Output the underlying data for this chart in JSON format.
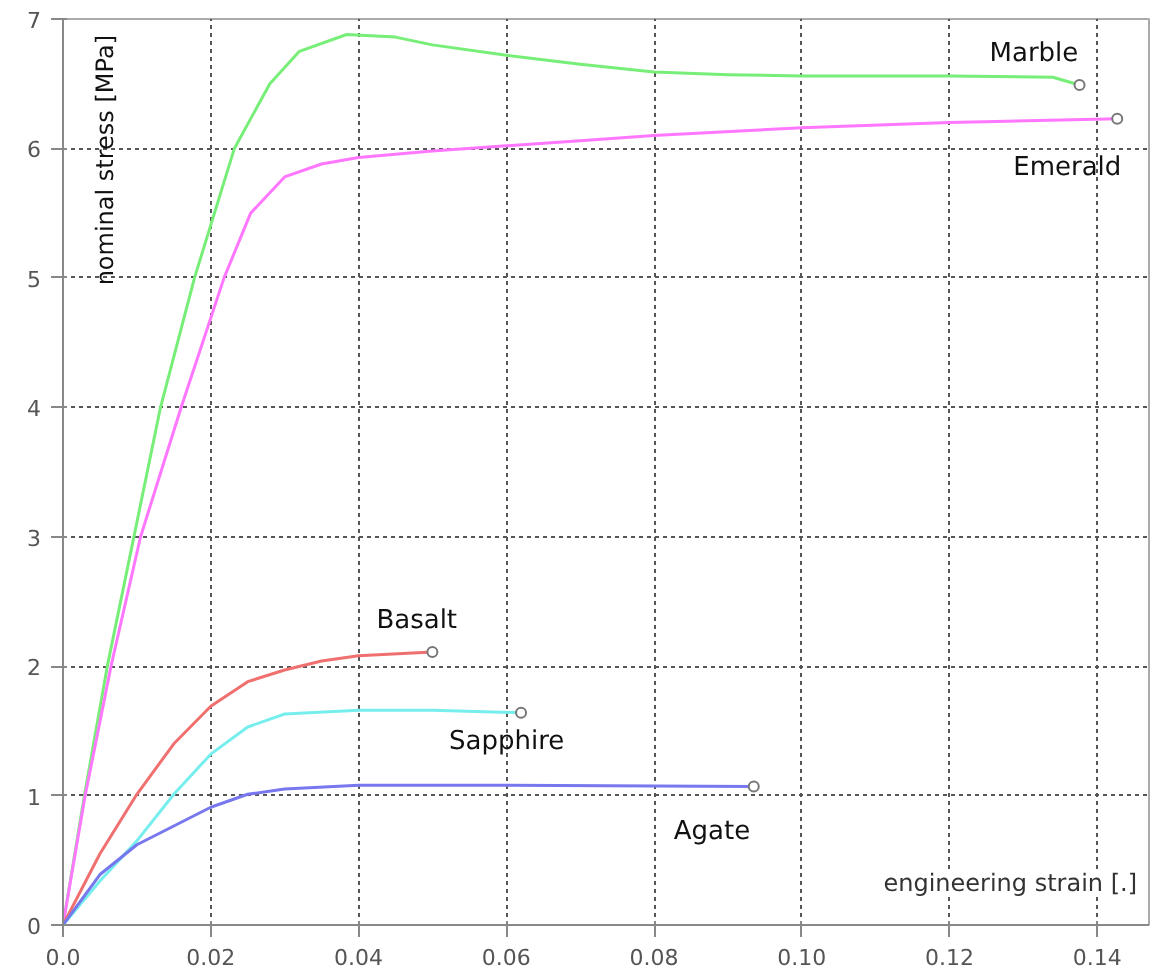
{
  "chart_data": {
    "type": "line",
    "xlabel": "engineering strain [.]",
    "ylabel": "nominal stress [MPa]",
    "xlim": [
      0,
      0.147
    ],
    "ylim": [
      0,
      7
    ],
    "xticks": [
      {
        "value": 0,
        "label": "0.0"
      },
      0.02,
      0.04,
      0.06,
      0.08,
      {
        "value": 0.1,
        "label": "0.10"
      },
      0.12,
      0.14
    ],
    "yticks": [
      0,
      1,
      2,
      3,
      4,
      5,
      6,
      7
    ],
    "grid": true,
    "line_style": "solid",
    "series": [
      {
        "name": "Marble",
        "color": "#77ee77",
        "x": [
          0,
          0.0029,
          0.006,
          0.0096,
          0.0132,
          0.0178,
          0.0232,
          0.028,
          0.032,
          0.0384,
          0.045,
          0.05,
          0.06,
          0.07,
          0.08,
          0.09,
          0.1,
          0.12,
          0.134,
          0.1376
        ],
        "values": [
          0,
          1,
          2,
          3,
          4,
          5,
          6,
          6.5,
          6.75,
          6.88,
          6.86,
          6.8,
          6.72,
          6.65,
          6.59,
          6.57,
          6.56,
          6.56,
          6.55,
          6.49
        ]
      },
      {
        "name": "Emerald",
        "color": "#ff77ff",
        "x": [
          0,
          0.003,
          0.0065,
          0.0105,
          0.016,
          0.0218,
          0.0254,
          0.03,
          0.035,
          0.04,
          0.05,
          0.06,
          0.07,
          0.08,
          0.1,
          0.12,
          0.1427
        ],
        "values": [
          0,
          1,
          2,
          3,
          4,
          5,
          5.5,
          5.78,
          5.88,
          5.93,
          5.98,
          6.02,
          6.06,
          6.1,
          6.16,
          6.2,
          6.23
        ]
      },
      {
        "name": "Basalt",
        "color": "#f07070",
        "x": [
          0,
          0.005,
          0.01,
          0.015,
          0.02,
          0.025,
          0.03,
          0.035,
          0.04,
          0.05
        ],
        "values": [
          0,
          0.55,
          1.01,
          1.4,
          1.69,
          1.88,
          1.97,
          2.04,
          2.08,
          2.11
        ]
      },
      {
        "name": "Sapphire",
        "color": "#77eeee",
        "x": [
          0,
          0.005,
          0.01,
          0.015,
          0.02,
          0.025,
          0.03,
          0.04,
          0.05,
          0.062
        ],
        "values": [
          0,
          0.34,
          0.65,
          1.01,
          1.32,
          1.53,
          1.63,
          1.66,
          1.66,
          1.64
        ]
      },
      {
        "name": "Agate",
        "color": "#7777ee",
        "x": [
          0,
          0.005,
          0.01,
          0.02,
          0.025,
          0.03,
          0.04,
          0.06,
          0.0935
        ],
        "values": [
          0,
          0.39,
          0.62,
          0.91,
          1.01,
          1.05,
          1.08,
          1.08,
          1.07
        ]
      }
    ]
  }
}
